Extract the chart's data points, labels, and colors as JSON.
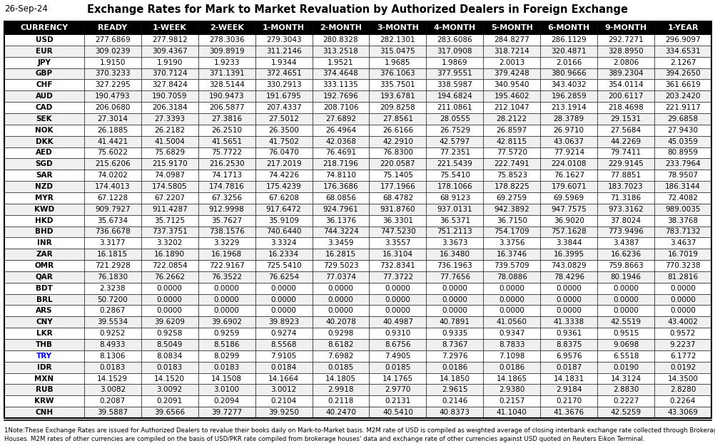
{
  "date_label": "26-Sep-24",
  "title": "Exchange Rates for Mark to Market Revaluation by Authorized Dealers in Foreign Exchange",
  "columns": [
    "CURRENCY",
    "READY",
    "1-WEEK",
    "2-WEEK",
    "1-MONTH",
    "2-MONTH",
    "3-MONTH",
    "4-MONTH",
    "5-MONTH",
    "6-MONTH",
    "9-MONTH",
    "1-YEAR"
  ],
  "rows": [
    [
      "USD",
      "277.6869",
      "277.9812",
      "278.3036",
      "279.3043",
      "280.8328",
      "282.1301",
      "283.6086",
      "284.8277",
      "286.1129",
      "292.7271",
      "296.9097"
    ],
    [
      "EUR",
      "309.0239",
      "309.4367",
      "309.8919",
      "311.2146",
      "313.2518",
      "315.0475",
      "317.0908",
      "318.7214",
      "320.4871",
      "328.8950",
      "334.6531"
    ],
    [
      "JPY",
      "1.9150",
      "1.9190",
      "1.9233",
      "1.9344",
      "1.9521",
      "1.9685",
      "1.9869",
      "2.0013",
      "2.0166",
      "2.0806",
      "2.1267"
    ],
    [
      "GBP",
      "370.3233",
      "370.7124",
      "371.1391",
      "372.4651",
      "374.4648",
      "376.1063",
      "377.9551",
      "379.4248",
      "380.9666",
      "389.2304",
      "394.2650"
    ],
    [
      "CHF",
      "327.2295",
      "327.8424",
      "328.5144",
      "330.2913",
      "333.1135",
      "335.7501",
      "338.5987",
      "340.9540",
      "343.4032",
      "354.0114",
      "361.6619"
    ],
    [
      "AUD",
      "190.4793",
      "190.7059",
      "190.9473",
      "191.6795",
      "192.7696",
      "193.6781",
      "194.6824",
      "195.4602",
      "196.2859",
      "200.6117",
      "203.2420"
    ],
    [
      "CAD",
      "206.0680",
      "206.3184",
      "206.5877",
      "207.4337",
      "208.7106",
      "209.8258",
      "211.0861",
      "212.1047",
      "213.1914",
      "218.4698",
      "221.9117"
    ],
    [
      "SEK",
      "27.3014",
      "27.3393",
      "27.3816",
      "27.5012",
      "27.6892",
      "27.8561",
      "28.0555",
      "28.2122",
      "28.3789",
      "29.1531",
      "29.6858"
    ],
    [
      "NOK",
      "26.1885",
      "26.2182",
      "26.2510",
      "26.3500",
      "26.4964",
      "26.6166",
      "26.7529",
      "26.8597",
      "26.9710",
      "27.5684",
      "27.9430"
    ],
    [
      "DKK",
      "41.4421",
      "41.5004",
      "41.5651",
      "41.7502",
      "42.0368",
      "42.2910",
      "42.5797",
      "42.8115",
      "43.0637",
      "44.2269",
      "45.0359"
    ],
    [
      "AED",
      "75.6022",
      "75.6829",
      "75.7722",
      "76.0470",
      "76.4691",
      "76.8300",
      "77.2351",
      "77.5720",
      "77.9214",
      "79.7411",
      "80.8959"
    ],
    [
      "SGD",
      "215.6206",
      "215.9170",
      "216.2530",
      "217.2019",
      "218.7196",
      "220.0587",
      "221.5439",
      "222.7491",
      "224.0108",
      "229.9145",
      "233.7964"
    ],
    [
      "SAR",
      "74.0202",
      "74.0987",
      "74.1713",
      "74.4226",
      "74.8110",
      "75.1405",
      "75.5410",
      "75.8523",
      "76.1627",
      "77.8851",
      "78.9507"
    ],
    [
      "NZD",
      "174.4013",
      "174.5805",
      "174.7816",
      "175.4239",
      "176.3686",
      "177.1966",
      "178.1066",
      "178.8225",
      "179.6071",
      "183.7023",
      "186.3144"
    ],
    [
      "MYR",
      "67.1228",
      "67.2207",
      "67.3256",
      "67.6208",
      "68.0856",
      "68.4782",
      "68.9123",
      "69.2759",
      "69.5969",
      "71.3186",
      "72.4082"
    ],
    [
      "KWD",
      "909.7927",
      "911.4287",
      "912.9998",
      "917.6472",
      "924.7961",
      "931.8760",
      "937.0131",
      "942.3892",
      "947.7575",
      "973.3162",
      "989.0035"
    ],
    [
      "HKD",
      "35.6734",
      "35.7125",
      "35.7627",
      "35.9109",
      "36.1376",
      "36.3301",
      "36.5371",
      "36.7150",
      "36.9020",
      "37.8024",
      "38.3768"
    ],
    [
      "BHD",
      "736.6678",
      "737.3751",
      "738.1576",
      "740.6440",
      "744.3224",
      "747.5230",
      "751.2113",
      "754.1709",
      "757.1628",
      "773.9496",
      "783.7132"
    ],
    [
      "INR",
      "3.3177",
      "3.3202",
      "3.3229",
      "3.3324",
      "3.3459",
      "3.3557",
      "3.3673",
      "3.3756",
      "3.3844",
      "3.4387",
      "3.4637"
    ],
    [
      "ZAR",
      "16.1815",
      "16.1890",
      "16.1968",
      "16.2334",
      "16.2815",
      "16.3104",
      "16.3480",
      "16.3746",
      "16.3995",
      "16.6236",
      "16.7019"
    ],
    [
      "OMR",
      "721.2928",
      "722.0854",
      "722.9167",
      "725.5410",
      "729.5023",
      "732.8341",
      "736.1963",
      "739.5709",
      "743.0829",
      "759.8663",
      "770.3238"
    ],
    [
      "QAR",
      "76.1830",
      "76.2662",
      "76.3522",
      "76.6254",
      "77.0374",
      "77.3722",
      "77.7656",
      "78.0886",
      "78.4296",
      "80.1946",
      "81.2816"
    ],
    [
      "BDT",
      "2.3238",
      "0.0000",
      "0.0000",
      "0.0000",
      "0.0000",
      "0.0000",
      "0.0000",
      "0.0000",
      "0.0000",
      "0.0000",
      "0.0000"
    ],
    [
      "BRL",
      "50.7200",
      "0.0000",
      "0.0000",
      "0.0000",
      "0.0000",
      "0.0000",
      "0.0000",
      "0.0000",
      "0.0000",
      "0.0000",
      "0.0000"
    ],
    [
      "ARS",
      "0.2867",
      "0.0000",
      "0.0000",
      "0.0000",
      "0.0000",
      "0.0000",
      "0.0000",
      "0.0000",
      "0.0000",
      "0.0000",
      "0.0000"
    ],
    [
      "CNY",
      "39.5534",
      "39.6209",
      "39.6902",
      "39.8923",
      "40.2078",
      "40.4987",
      "40.7891",
      "41.0560",
      "41.3338",
      "42.5519",
      "43.4002"
    ],
    [
      "LKR",
      "0.9252",
      "0.9258",
      "0.9259",
      "0.9274",
      "0.9298",
      "0.9310",
      "0.9335",
      "0.9347",
      "0.9361",
      "0.9515",
      "0.9572"
    ],
    [
      "THB",
      "8.4933",
      "8.5049",
      "8.5186",
      "8.5568",
      "8.6182",
      "8.6756",
      "8.7367",
      "8.7833",
      "8.8375",
      "9.0698",
      "9.2237"
    ],
    [
      "TRY",
      "8.1306",
      "8.0834",
      "8.0299",
      "7.9105",
      "7.6982",
      "7.4905",
      "7.2976",
      "7.1098",
      "6.9576",
      "6.5518",
      "6.1772"
    ],
    [
      "IDR",
      "0.0183",
      "0.0183",
      "0.0183",
      "0.0184",
      "0.0185",
      "0.0185",
      "0.0186",
      "0.0186",
      "0.0187",
      "0.0190",
      "0.0192"
    ],
    [
      "MXN",
      "14.1529",
      "14.1520",
      "14.1508",
      "14.1664",
      "14.1805",
      "14.1765",
      "14.1850",
      "14.1865",
      "14.1831",
      "14.3124",
      "14.3500"
    ],
    [
      "RUB",
      "3.0082",
      "3.0092",
      "3.0100",
      "3.0012",
      "2.9918",
      "2.9770",
      "2.9615",
      "2.9380",
      "2.9184",
      "2.8830",
      "2.8280"
    ],
    [
      "KRW",
      "0.2087",
      "0.2091",
      "0.2094",
      "0.2104",
      "0.2118",
      "0.2131",
      "0.2146",
      "0.2157",
      "0.2170",
      "0.2227",
      "0.2264"
    ],
    [
      "CNH",
      "39.5887",
      "39.6566",
      "39.7277",
      "39.9250",
      "40.2470",
      "40.5410",
      "40.8373",
      "41.1040",
      "41.3676",
      "42.5259",
      "43.3069"
    ]
  ],
  "try_highlight_color": "#0000FF",
  "footnote_line1": "1Note:These Exchange Rates are issued for Authorized Dealers to revalue their books daily on Mark-to-Market basis. M2M rate of USD is compiled as weighted average of closing interbank exchange rate collected through Brokerage",
  "footnote_line2": "Houses. M2M rates of other currencies are compiled on the basis of USD/PKR rate compiled from brokerage houses' data and exchange rate of other currencies against USD quoted on Reuters Eikon Terminal.",
  "header_bg_color": "#000000",
  "header_text_color": "#FFFFFF",
  "row_colors": [
    "#FFFFFF",
    "#F0F0F0"
  ],
  "border_color": "#000000",
  "title_fontsize": 10.5,
  "date_fontsize": 8.5,
  "header_fontsize": 8.0,
  "cell_fontsize": 7.5,
  "footnote_fontsize": 6.2
}
